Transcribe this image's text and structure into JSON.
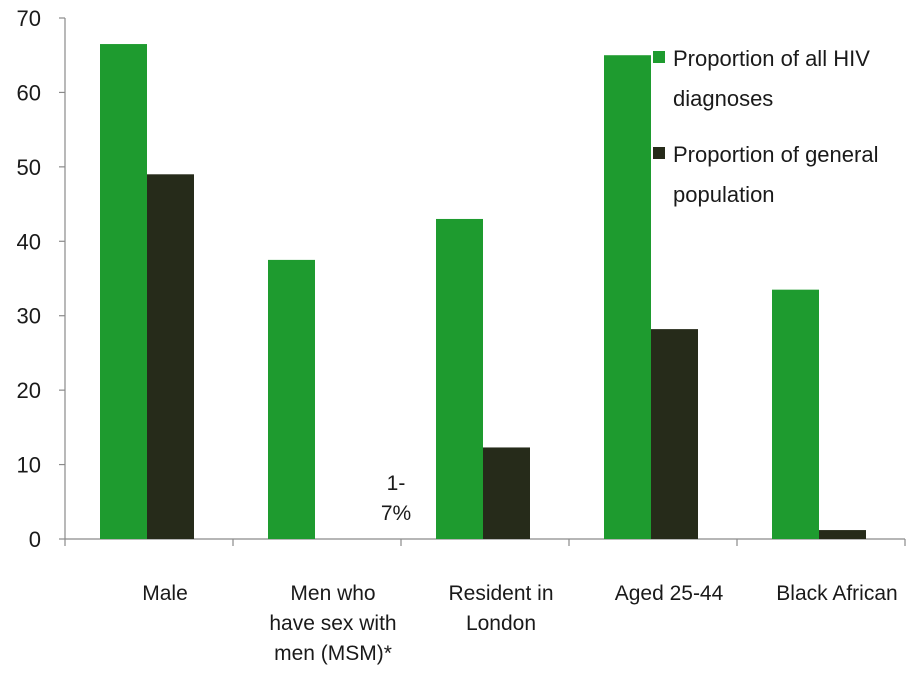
{
  "chart_data": {
    "type": "bar",
    "categories": [
      [
        "Male"
      ],
      [
        "Men who",
        "have sex with",
        "men (MSM)*"
      ],
      [
        "Resident in",
        "London"
      ],
      [
        "Aged 25-44"
      ],
      [
        "Black African"
      ]
    ],
    "series": [
      {
        "name": "Proportion of all HIV diagnoses",
        "name_lines": [
          "Proportion of all HIV",
          "diagnoses"
        ],
        "color": "#1e9b2f",
        "values": [
          66.5,
          37.5,
          43,
          65,
          33.5
        ]
      },
      {
        "name": "Proportion of general population",
        "name_lines": [
          "Proportion of general",
          "population"
        ],
        "color": "#262b1a",
        "values": [
          49,
          null,
          12.3,
          28.2,
          1.2
        ]
      }
    ],
    "annotations": [
      {
        "category": 1,
        "lines": [
          "1-",
          "7%"
        ]
      }
    ],
    "yticks": [
      0,
      10,
      20,
      30,
      40,
      50,
      60,
      70
    ],
    "ylim": [
      0,
      70
    ],
    "grid": false,
    "legend_position": "top-right"
  }
}
